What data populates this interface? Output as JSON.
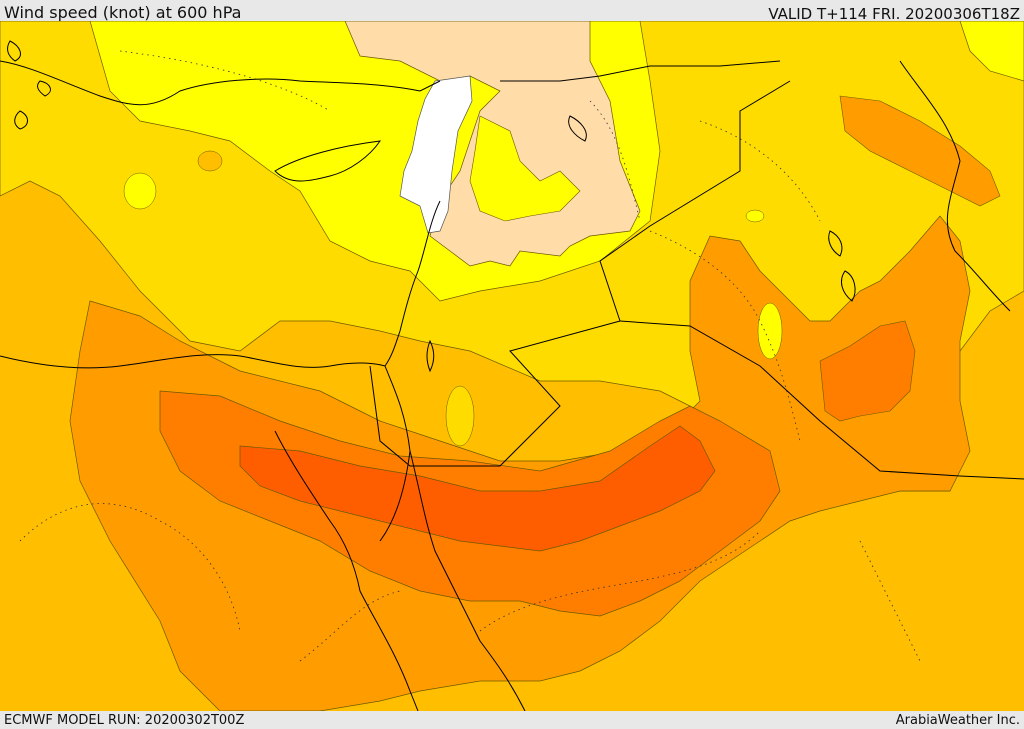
{
  "header": {
    "title": "Wind speed (knot) at 600 hPa",
    "valid": "VALID T+114 FRI. 20200306T18Z"
  },
  "footer": {
    "model_run": "ECMWF MODEL RUN: 20200302T00Z",
    "provider": "ArabiaWeather Inc."
  },
  "legend_colors": {
    "white": "#ffffff",
    "peach": "#ffdca8",
    "yellow": "#ffff00",
    "gold": "#ffdc00",
    "amber": "#ffbe00",
    "orange": "#ff9c00",
    "dark_orange": "#ff7e00",
    "red_orange": "#ff5e00",
    "coastline": "#000000"
  }
}
